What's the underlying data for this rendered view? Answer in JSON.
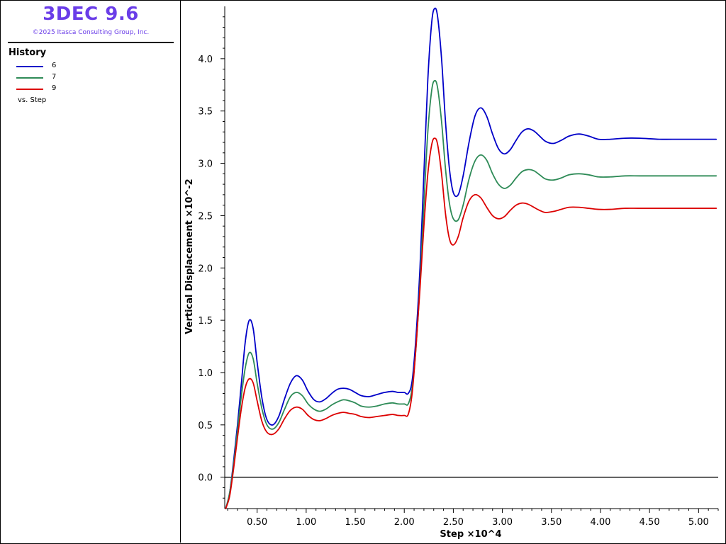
{
  "app": {
    "title": "3DEC 9.6",
    "copyright": "©2025 Itasca Consulting Group, Inc."
  },
  "legend": {
    "title": "History",
    "entries": [
      {
        "label": "6",
        "color": "#0000c8"
      },
      {
        "label": "7",
        "color": "#2e8b57"
      },
      {
        "label": "9",
        "color": "#dc0000"
      }
    ],
    "vs_label": "vs. Step"
  },
  "chart_data": {
    "type": "line",
    "title": "",
    "xlabel": "Step ×10^4",
    "ylabel": "Vertical Displacement  ×10^-2",
    "xlim": [
      0.17,
      5.2
    ],
    "ylim": [
      -0.3,
      4.5
    ],
    "xticks": [
      0.5,
      1.0,
      1.5,
      2.0,
      2.5,
      3.0,
      3.5,
      4.0,
      4.5,
      5.0
    ],
    "xtick_labels": [
      "0.50",
      "1.00",
      "1.50",
      "2.00",
      "2.50",
      "3.00",
      "3.50",
      "4.00",
      "4.50",
      "5.00"
    ],
    "yticks": [
      0.0,
      0.5,
      1.0,
      1.5,
      2.0,
      2.5,
      3.0,
      3.5,
      4.0
    ],
    "ytick_labels": [
      "0.0",
      "0.5",
      "1.0",
      "1.5",
      "2.0",
      "2.5",
      "3.0",
      "3.5",
      "4.0"
    ],
    "reference_line_y": 0.0,
    "grid": false,
    "legend_position": "left-panel",
    "series": [
      {
        "name": "6",
        "color": "#0000c8",
        "x": [
          0.18,
          0.22,
          0.26,
          0.3,
          0.34,
          0.38,
          0.42,
          0.46,
          0.5,
          0.55,
          0.6,
          0.66,
          0.72,
          0.78,
          0.84,
          0.9,
          0.96,
          1.02,
          1.08,
          1.14,
          1.2,
          1.26,
          1.32,
          1.38,
          1.44,
          1.5,
          1.56,
          1.64,
          1.72,
          1.8,
          1.88,
          1.94,
          2.0,
          2.04,
          2.08,
          2.12,
          2.16,
          2.2,
          2.24,
          2.28,
          2.31,
          2.34,
          2.38,
          2.42,
          2.46,
          2.5,
          2.55,
          2.6,
          2.66,
          2.72,
          2.78,
          2.84,
          2.9,
          2.96,
          3.02,
          3.08,
          3.14,
          3.2,
          3.26,
          3.32,
          3.38,
          3.44,
          3.52,
          3.6,
          3.68,
          3.78,
          3.88,
          3.98,
          4.1,
          4.25,
          4.4,
          4.6,
          4.8,
          5.0,
          5.18
        ],
        "y": [
          -0.3,
          -0.15,
          0.15,
          0.5,
          0.9,
          1.3,
          1.5,
          1.42,
          1.1,
          0.75,
          0.55,
          0.5,
          0.58,
          0.75,
          0.9,
          0.97,
          0.93,
          0.82,
          0.74,
          0.72,
          0.75,
          0.8,
          0.84,
          0.85,
          0.84,
          0.81,
          0.78,
          0.77,
          0.79,
          0.81,
          0.82,
          0.81,
          0.81,
          0.8,
          0.92,
          1.35,
          2.0,
          2.9,
          3.8,
          4.35,
          4.48,
          4.4,
          4.0,
          3.4,
          2.95,
          2.72,
          2.7,
          2.88,
          3.2,
          3.45,
          3.53,
          3.45,
          3.28,
          3.14,
          3.09,
          3.13,
          3.22,
          3.3,
          3.33,
          3.31,
          3.26,
          3.21,
          3.19,
          3.22,
          3.26,
          3.28,
          3.26,
          3.23,
          3.23,
          3.24,
          3.24,
          3.23,
          3.23,
          3.23,
          3.23
        ]
      },
      {
        "name": "7",
        "color": "#2e8b57",
        "x": [
          0.18,
          0.22,
          0.26,
          0.3,
          0.34,
          0.38,
          0.42,
          0.46,
          0.5,
          0.55,
          0.6,
          0.66,
          0.72,
          0.78,
          0.84,
          0.9,
          0.96,
          1.02,
          1.08,
          1.14,
          1.2,
          1.26,
          1.32,
          1.38,
          1.44,
          1.5,
          1.56,
          1.64,
          1.72,
          1.8,
          1.88,
          1.94,
          2.0,
          2.04,
          2.08,
          2.12,
          2.16,
          2.2,
          2.24,
          2.28,
          2.31,
          2.34,
          2.38,
          2.42,
          2.46,
          2.5,
          2.55,
          2.6,
          2.66,
          2.72,
          2.78,
          2.84,
          2.9,
          2.96,
          3.02,
          3.08,
          3.14,
          3.2,
          3.26,
          3.32,
          3.38,
          3.44,
          3.52,
          3.6,
          3.68,
          3.78,
          3.88,
          3.98,
          4.1,
          4.25,
          4.4,
          4.6,
          4.8,
          5.0,
          5.18
        ],
        "y": [
          -0.3,
          -0.15,
          0.12,
          0.45,
          0.78,
          1.05,
          1.19,
          1.13,
          0.9,
          0.65,
          0.5,
          0.46,
          0.52,
          0.65,
          0.77,
          0.81,
          0.78,
          0.7,
          0.65,
          0.63,
          0.65,
          0.69,
          0.72,
          0.74,
          0.73,
          0.71,
          0.68,
          0.67,
          0.68,
          0.7,
          0.71,
          0.7,
          0.7,
          0.7,
          0.85,
          1.25,
          1.85,
          2.6,
          3.3,
          3.7,
          3.79,
          3.72,
          3.4,
          2.95,
          2.62,
          2.47,
          2.46,
          2.6,
          2.85,
          3.02,
          3.08,
          3.03,
          2.9,
          2.8,
          2.76,
          2.79,
          2.86,
          2.92,
          2.94,
          2.93,
          2.89,
          2.85,
          2.84,
          2.86,
          2.89,
          2.9,
          2.89,
          2.87,
          2.87,
          2.88,
          2.88,
          2.88,
          2.88,
          2.88,
          2.88
        ]
      },
      {
        "name": "9",
        "color": "#dc0000",
        "x": [
          0.18,
          0.22,
          0.26,
          0.3,
          0.34,
          0.38,
          0.42,
          0.46,
          0.5,
          0.55,
          0.6,
          0.66,
          0.72,
          0.78,
          0.84,
          0.9,
          0.96,
          1.02,
          1.08,
          1.14,
          1.2,
          1.26,
          1.32,
          1.38,
          1.44,
          1.5,
          1.56,
          1.64,
          1.72,
          1.8,
          1.88,
          1.94,
          2.0,
          2.04,
          2.08,
          2.12,
          2.16,
          2.2,
          2.24,
          2.28,
          2.31,
          2.34,
          2.38,
          2.42,
          2.46,
          2.5,
          2.55,
          2.6,
          2.66,
          2.72,
          2.78,
          2.84,
          2.9,
          2.96,
          3.02,
          3.08,
          3.14,
          3.2,
          3.26,
          3.32,
          3.38,
          3.44,
          3.52,
          3.6,
          3.68,
          3.78,
          3.88,
          3.98,
          4.1,
          4.25,
          4.4,
          4.6,
          4.8,
          5.0,
          5.18
        ],
        "y": [
          -0.3,
          -0.18,
          0.08,
          0.38,
          0.66,
          0.86,
          0.94,
          0.9,
          0.73,
          0.53,
          0.43,
          0.41,
          0.46,
          0.56,
          0.64,
          0.67,
          0.65,
          0.59,
          0.55,
          0.54,
          0.56,
          0.59,
          0.61,
          0.62,
          0.61,
          0.6,
          0.58,
          0.57,
          0.58,
          0.59,
          0.6,
          0.59,
          0.59,
          0.6,
          0.8,
          1.25,
          1.8,
          2.4,
          2.9,
          3.18,
          3.24,
          3.18,
          2.9,
          2.52,
          2.28,
          2.22,
          2.3,
          2.48,
          2.64,
          2.7,
          2.67,
          2.58,
          2.5,
          2.47,
          2.49,
          2.55,
          2.6,
          2.62,
          2.61,
          2.58,
          2.55,
          2.53,
          2.54,
          2.56,
          2.58,
          2.58,
          2.57,
          2.56,
          2.56,
          2.57,
          2.57,
          2.57,
          2.57,
          2.57,
          2.57
        ]
      }
    ]
  }
}
